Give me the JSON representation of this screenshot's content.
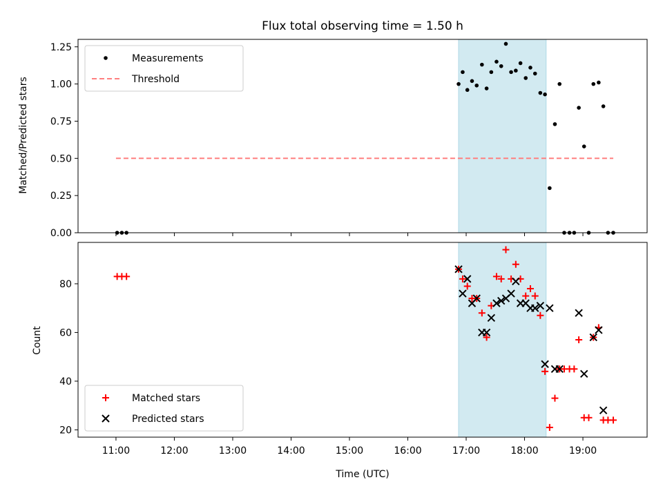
{
  "title": "Flux total observing time = 1.50 h",
  "colors": {
    "measurement": "#000000",
    "threshold": "#ff7f7f",
    "matched": "#ff0000",
    "predicted": "#000000",
    "shade": "#add8e6"
  },
  "chart_data": [
    {
      "type": "scatter",
      "ylabel": "Matched/Predicted stars",
      "xlim": [
        10.35,
        20.1
      ],
      "ylim": [
        0,
        1.3
      ],
      "yticks": [
        0,
        0.25,
        0.5,
        0.75,
        1.0,
        1.25
      ],
      "ytick_labels": [
        "0.00",
        "0.25",
        "0.50",
        "0.75",
        "1.00",
        "1.25"
      ],
      "shaded_span": [
        16.87,
        18.37
      ],
      "legend": {
        "placement": "top-left",
        "entries": [
          "Measurements",
          "Threshold"
        ]
      },
      "threshold": {
        "name": "Threshold",
        "value": 0.5,
        "x": [
          11.0,
          19.52
        ]
      },
      "series": [
        {
          "name": "Measurements",
          "x": [
            11.02,
            11.1,
            11.18,
            16.87,
            16.94,
            17.02,
            17.1,
            17.18,
            17.27,
            17.35,
            17.43,
            17.52,
            17.6,
            17.68,
            17.77,
            17.85,
            17.93,
            18.02,
            18.1,
            18.18,
            18.27,
            18.35,
            18.43,
            18.52,
            18.6,
            18.68,
            18.77,
            18.85,
            18.93,
            19.02,
            19.1,
            19.18,
            19.27,
            19.35,
            19.43,
            19.52
          ],
          "y": [
            0,
            0,
            0,
            1.0,
            1.08,
            0.96,
            1.02,
            0.99,
            1.13,
            0.97,
            1.08,
            1.15,
            1.12,
            1.27,
            1.08,
            1.09,
            1.14,
            1.04,
            1.11,
            1.07,
            0.94,
            0.93,
            0.3,
            0.73,
            1.0,
            0,
            0,
            0,
            0.84,
            0.58,
            0,
            1.0,
            1.01,
            0.85,
            0,
            0
          ]
        }
      ]
    },
    {
      "type": "scatter",
      "ylabel": "Count",
      "xlabel": "Time (UTC)",
      "xlim": [
        10.35,
        20.1
      ],
      "ylim": [
        17,
        97
      ],
      "yticks": [
        20,
        40,
        60,
        80
      ],
      "xticks": [
        11,
        12,
        13,
        14,
        15,
        16,
        17,
        18,
        19
      ],
      "xtick_labels": [
        "11:00",
        "12:00",
        "13:00",
        "14:00",
        "15:00",
        "16:00",
        "17:00",
        "18:00",
        "19:00"
      ],
      "shaded_span": [
        16.87,
        18.37
      ],
      "legend": {
        "placement": "bottom-left",
        "entries": [
          "Matched stars",
          "Predicted stars"
        ]
      },
      "series": [
        {
          "name": "Matched stars",
          "x": [
            11.02,
            11.1,
            11.18,
            16.87,
            16.94,
            17.02,
            17.1,
            17.18,
            17.27,
            17.35,
            17.43,
            17.52,
            17.6,
            17.68,
            17.77,
            17.85,
            17.93,
            18.02,
            18.1,
            18.18,
            18.27,
            18.35,
            18.43,
            18.52,
            18.6,
            18.68,
            18.77,
            18.85,
            18.93,
            19.02,
            19.1,
            19.18,
            19.27,
            19.35,
            19.43,
            19.52
          ],
          "y": [
            83,
            83,
            83,
            86,
            82,
            79,
            74,
            74,
            68,
            58,
            71,
            83,
            82,
            94,
            82,
            88,
            82,
            75,
            78,
            75,
            67,
            44,
            21,
            33,
            45,
            45,
            45,
            45,
            57,
            25,
            25,
            58,
            62,
            24,
            24,
            24
          ]
        },
        {
          "name": "Predicted stars",
          "x": [
            16.87,
            16.94,
            17.02,
            17.1,
            17.18,
            17.27,
            17.35,
            17.43,
            17.52,
            17.6,
            17.68,
            17.77,
            17.85,
            17.93,
            18.02,
            18.1,
            18.18,
            18.27,
            18.35,
            18.43,
            18.52,
            18.6,
            18.93,
            19.02,
            19.18,
            19.27,
            19.35
          ],
          "y": [
            86,
            76,
            82,
            72,
            74,
            60,
            60,
            66,
            72,
            73,
            74,
            76,
            81,
            72,
            72,
            70,
            70,
            71,
            47,
            70,
            45,
            45,
            68,
            43,
            58,
            61,
            28
          ]
        }
      ]
    }
  ]
}
